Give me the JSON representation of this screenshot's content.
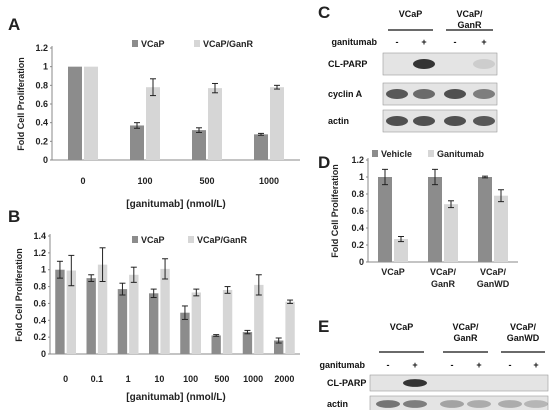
{
  "colors": {
    "dark": "#8c8c8c",
    "light": "#d6d6d6",
    "blot_bg": "#e4e4e4",
    "band": "#2a2a2a"
  },
  "panels": {
    "A": "A",
    "B": "B",
    "C": "C",
    "D": "D",
    "E": "E"
  },
  "chart_data": [
    {
      "panel": "A",
      "type": "bar",
      "categories": [
        "0",
        "100",
        "500",
        "1000"
      ],
      "series": [
        {
          "name": "VCaP",
          "values": [
            1.0,
            0.37,
            0.32,
            0.275
          ],
          "errors": [
            0.0,
            0.03,
            0.025,
            0.01
          ]
        },
        {
          "name": "VCaP/GanR",
          "values": [
            1.0,
            0.78,
            0.77,
            0.78
          ],
          "errors": [
            0.0,
            0.09,
            0.05,
            0.02
          ]
        }
      ],
      "ylabel": "Fold Cell Proliferation",
      "xlabel": "[ganitumab] (nmol/L)",
      "ylim": [
        0,
        1.2
      ],
      "yticks": [
        "0",
        "0.2",
        "0.4",
        "0.6",
        "0.8",
        "1",
        "1.2"
      ],
      "legend": "top-right"
    },
    {
      "panel": "B",
      "type": "bar",
      "categories": [
        "0",
        "0.1",
        "1",
        "10",
        "100",
        "500",
        "1000",
        "2000"
      ],
      "series": [
        {
          "name": "VCaP",
          "values": [
            1.0,
            0.9,
            0.77,
            0.72,
            0.49,
            0.22,
            0.26,
            0.16
          ],
          "errors": [
            0.1,
            0.04,
            0.07,
            0.05,
            0.08,
            0.01,
            0.02,
            0.03
          ]
        },
        {
          "name": "VCaP/GanR",
          "values": [
            0.99,
            1.06,
            0.94,
            1.01,
            0.73,
            0.76,
            0.82,
            0.62
          ],
          "errors": [
            0.18,
            0.2,
            0.09,
            0.12,
            0.04,
            0.04,
            0.12,
            0.02
          ]
        }
      ],
      "ylabel": "Fold Cell Proliferation",
      "xlabel": "[ganitumab] (nmol/L)",
      "ylim": [
        0,
        1.4
      ],
      "yticks": [
        "0",
        "0.2",
        "0.4",
        "0.6",
        "0.8",
        "1",
        "1.2",
        "1.4"
      ],
      "legend": "top-right"
    },
    {
      "panel": "D",
      "type": "bar",
      "categories": [
        "VCaP",
        "VCaP/\nGanR",
        "VCaP/\nGanWD"
      ],
      "series": [
        {
          "name": "Vehicle",
          "values": [
            1.0,
            1.0,
            1.0
          ],
          "errors": [
            0.09,
            0.09,
            0.01
          ]
        },
        {
          "name": "Ganitumab",
          "values": [
            0.27,
            0.68,
            0.78
          ],
          "errors": [
            0.03,
            0.04,
            0.07
          ]
        }
      ],
      "ylabel": "Fold Cell Proliferation",
      "xlabel": "",
      "ylim": [
        0,
        1.2
      ],
      "yticks": [
        "0",
        "0.2",
        "0.4",
        "0.6",
        "0.8",
        "1",
        "1.2"
      ],
      "legend": "top-left"
    }
  ],
  "blot_C": {
    "groups": [
      "VCaP",
      "VCaP/\nGanR"
    ],
    "treatment_label": "ganitumab",
    "treatment": [
      "-",
      "+",
      "-",
      "+"
    ],
    "rows": [
      "CL-PARP",
      "cyclin A",
      "actin"
    ]
  },
  "blot_E": {
    "groups": [
      "VCaP",
      "VCaP/\nGanR",
      "VCaP/\nGanWD"
    ],
    "treatment_label": "ganitumab",
    "treatment": [
      "-",
      "+",
      "-",
      "+",
      "-",
      "+"
    ],
    "rows": [
      "CL-PARP",
      "actin"
    ]
  }
}
